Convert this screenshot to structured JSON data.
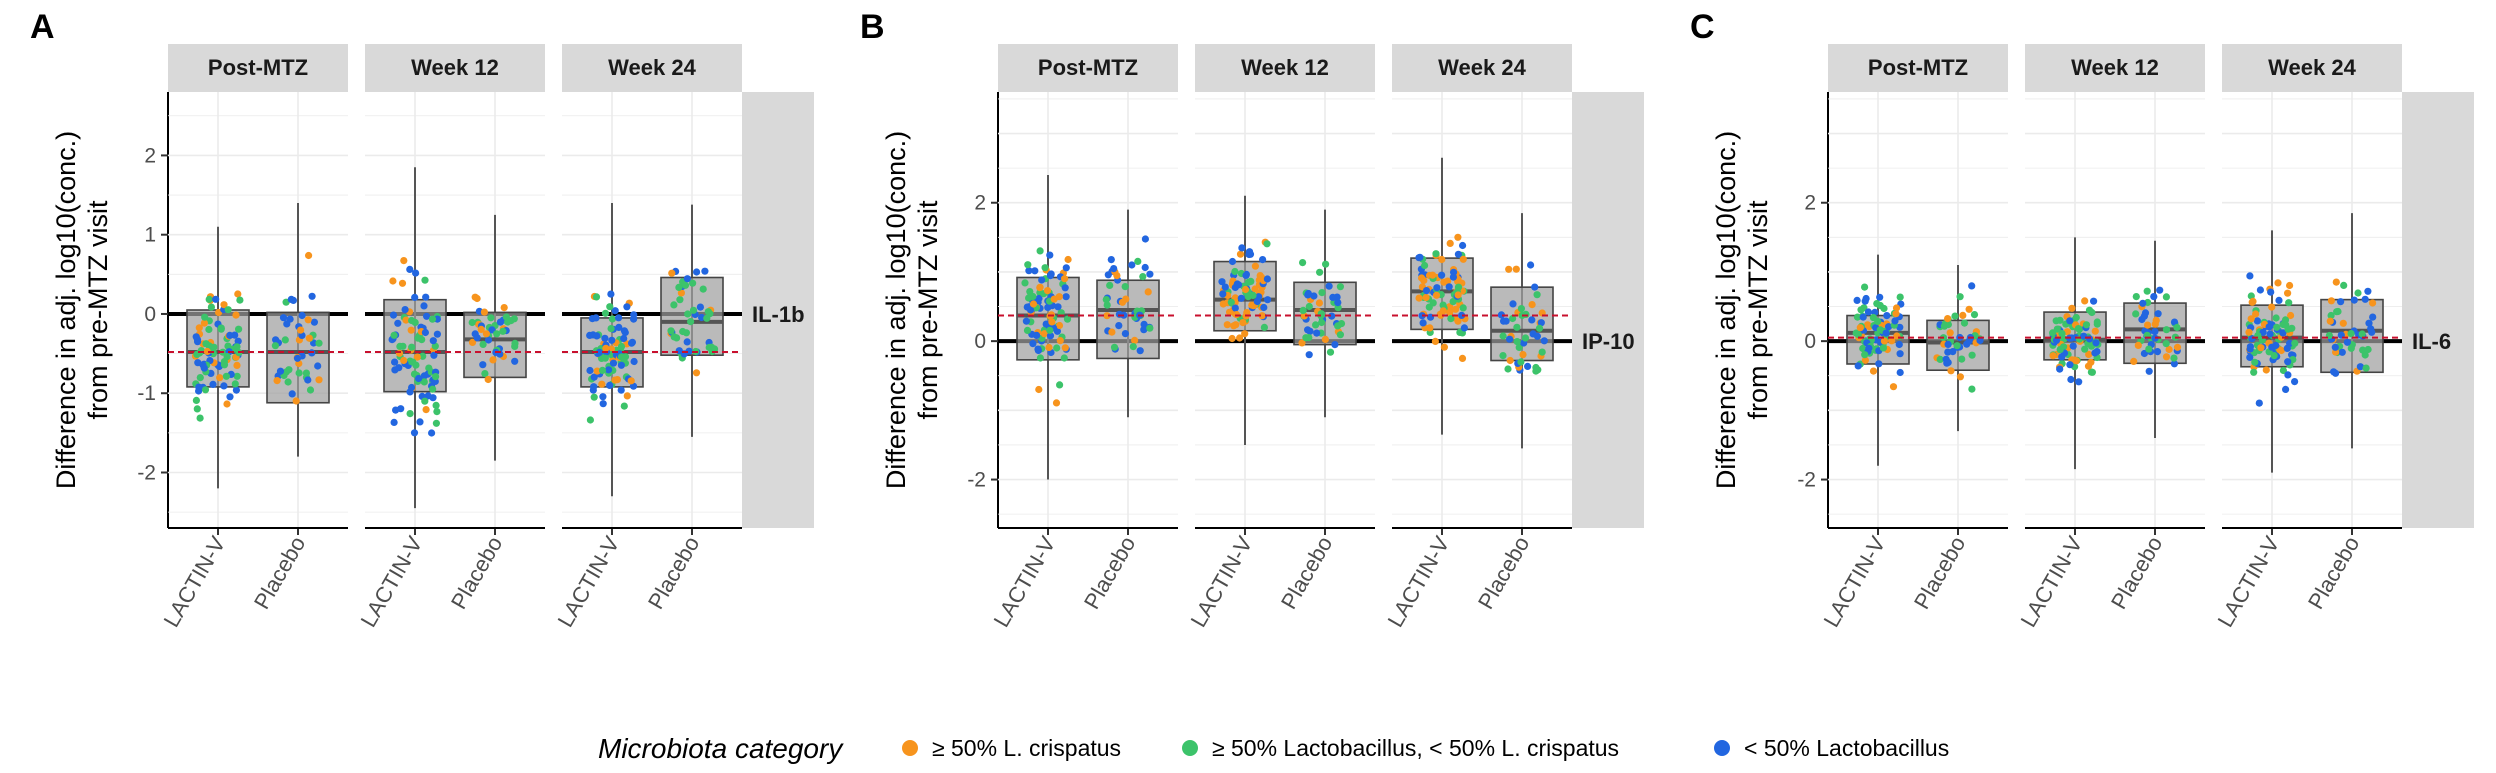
{
  "legend": {
    "title": "Microbiota category",
    "items": [
      {
        "label": "≥ 50% L. crispatus",
        "color": "#F7941D"
      },
      {
        "label": "≥ 50% Lactobacillus, < 50% L. crispatus",
        "color": "#3CC36A"
      },
      {
        "label": "< 50% Lactobacillus",
        "color": "#2266E0"
      }
    ]
  },
  "chart_data": [
    {
      "type": "boxplot",
      "panel": "A",
      "analyte": "IL-1b",
      "ylabel": [
        "Difference in adj. log10(conc.)",
        "from pre-MTZ visit"
      ],
      "ylim": [
        -2.7,
        2.8
      ],
      "yticks": [
        -2,
        -1,
        0,
        1,
        2
      ],
      "categories": [
        "LACTIN-V",
        "Placebo"
      ],
      "reference_lines": {
        "zero": 0,
        "dashed_red": -0.48
      },
      "facets": [
        {
          "label": "Post-MTZ",
          "boxes": [
            {
              "group": "LACTIN-V",
              "whisker_low": -2.2,
              "q1": -0.92,
              "median": -0.48,
              "q3": 0.05,
              "whisker_high": 1.1
            },
            {
              "group": "Placebo",
              "whisker_low": -1.8,
              "q1": -1.12,
              "median": -0.48,
              "q3": 0.02,
              "whisker_high": 1.4
            }
          ]
        },
        {
          "label": "Week 12",
          "boxes": [
            {
              "group": "LACTIN-V",
              "whisker_low": -2.45,
              "q1": -0.98,
              "median": -0.48,
              "q3": 0.18,
              "whisker_high": 1.85
            },
            {
              "group": "Placebo",
              "whisker_low": -1.85,
              "q1": -0.8,
              "median": -0.32,
              "q3": 0.02,
              "whisker_high": 1.25
            }
          ]
        },
        {
          "label": "Week 24",
          "boxes": [
            {
              "group": "LACTIN-V",
              "whisker_low": -2.3,
              "q1": -0.92,
              "median": -0.48,
              "q3": -0.05,
              "whisker_high": 1.4
            },
            {
              "group": "Placebo",
              "whisker_low": -1.55,
              "q1": -0.52,
              "median": -0.1,
              "q3": 0.46,
              "whisker_high": 1.38
            }
          ]
        }
      ]
    },
    {
      "type": "boxplot",
      "panel": "B",
      "analyte": "IP-10",
      "ylabel": [
        "Difference in adj. log10(conc.)",
        "from pre-MTZ visit"
      ],
      "ylim": [
        -2.7,
        3.6
      ],
      "yticks": [
        -2,
        0,
        2
      ],
      "categories": [
        "LACTIN-V",
        "Placebo"
      ],
      "reference_lines": {
        "zero": 0,
        "dashed_red": 0.37
      },
      "facets": [
        {
          "label": "Post-MTZ",
          "boxes": [
            {
              "group": "LACTIN-V",
              "whisker_low": -2.0,
              "q1": -0.27,
              "median": 0.37,
              "q3": 0.92,
              "whisker_high": 2.4
            },
            {
              "group": "Placebo",
              "whisker_low": -1.1,
              "q1": -0.25,
              "median": 0.45,
              "q3": 0.88,
              "whisker_high": 1.9
            }
          ]
        },
        {
          "label": "Week 12",
          "boxes": [
            {
              "group": "LACTIN-V",
              "whisker_low": -1.5,
              "q1": 0.15,
              "median": 0.6,
              "q3": 1.15,
              "whisker_high": 2.1
            },
            {
              "group": "Placebo",
              "whisker_low": -1.1,
              "q1": -0.05,
              "median": 0.45,
              "q3": 0.85,
              "whisker_high": 1.9
            }
          ]
        },
        {
          "label": "Week 24",
          "boxes": [
            {
              "group": "LACTIN-V",
              "whisker_low": -1.35,
              "q1": 0.17,
              "median": 0.72,
              "q3": 1.2,
              "whisker_high": 2.65
            },
            {
              "group": "Placebo",
              "whisker_low": -1.55,
              "q1": -0.28,
              "median": 0.15,
              "q3": 0.78,
              "whisker_high": 1.85
            }
          ]
        }
      ]
    },
    {
      "type": "boxplot",
      "panel": "C",
      "analyte": "IL-6",
      "ylabel": [
        "Difference in adj. log10(conc.)",
        "from pre-MTZ visit"
      ],
      "ylim": [
        -2.7,
        3.6
      ],
      "yticks": [
        -2,
        0,
        2
      ],
      "categories": [
        "LACTIN-V",
        "Placebo"
      ],
      "reference_lines": {
        "zero": 0,
        "dashed_red": 0.05
      },
      "facets": [
        {
          "label": "Post-MTZ",
          "boxes": [
            {
              "group": "LACTIN-V",
              "whisker_low": -1.8,
              "q1": -0.33,
              "median": 0.12,
              "q3": 0.37,
              "whisker_high": 1.25
            },
            {
              "group": "Placebo",
              "whisker_low": -1.3,
              "q1": -0.42,
              "median": -0.02,
              "q3": 0.3,
              "whisker_high": 1.1
            }
          ]
        },
        {
          "label": "Week 12",
          "boxes": [
            {
              "group": "LACTIN-V",
              "whisker_low": -1.85,
              "q1": -0.27,
              "median": 0.02,
              "q3": 0.42,
              "whisker_high": 1.5
            },
            {
              "group": "Placebo",
              "whisker_low": -1.4,
              "q1": -0.32,
              "median": 0.17,
              "q3": 0.55,
              "whisker_high": 1.45
            }
          ]
        },
        {
          "label": "Week 24",
          "boxes": [
            {
              "group": "LACTIN-V",
              "whisker_low": -1.9,
              "q1": -0.37,
              "median": 0.05,
              "q3": 0.52,
              "whisker_high": 1.6
            },
            {
              "group": "Placebo",
              "whisker_low": -1.55,
              "q1": -0.45,
              "median": 0.15,
              "q3": 0.6,
              "whisker_high": 1.85
            }
          ]
        }
      ]
    }
  ]
}
